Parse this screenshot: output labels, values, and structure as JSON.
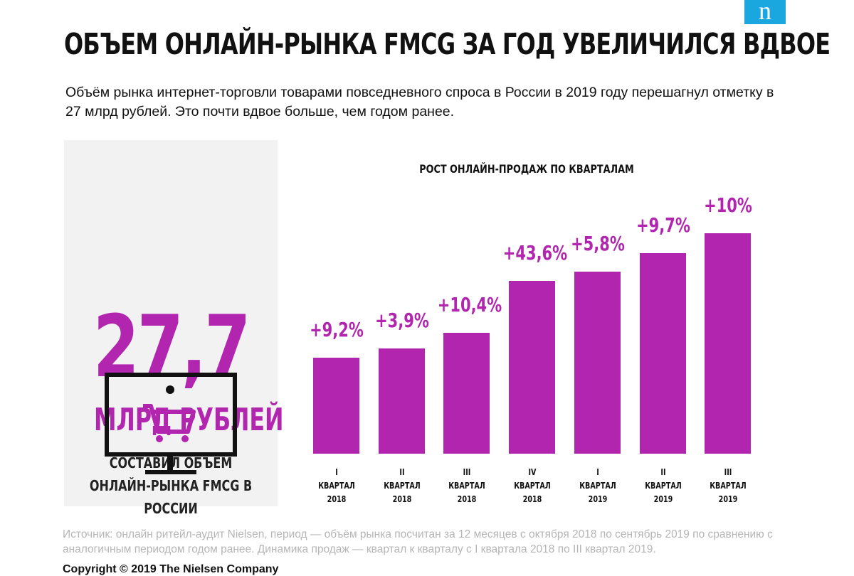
{
  "logo": "n",
  "title": "ОБЪЕМ ОНЛАЙН-РЫНКА FMCG ЗА ГОД УВЕЛИЧИЛСЯ ВДВОЕ",
  "subtitle": "Объём рынка интернет-торговли товарами повседневного спроса в России в 2019 году перешагнул отметку в 27 млрд рублей. Это почти вдвое больше, чем годом ранее.",
  "panel": {
    "value": "27,7",
    "unit": "МЛРД РУБЛЕЙ",
    "description": "СОСТАВИЛ ОБЪЕМ ОНЛАЙН-РЫНКА FMCG В РОССИИ"
  },
  "colors": {
    "accent": "#b125af",
    "panel_bg": "#f3f2f2",
    "logo": "#1aa7e0"
  },
  "chart_data": {
    "type": "bar",
    "title": "РОСТ ОНЛАЙН-ПРОДАЖ ПО КВАРТАЛАМ",
    "categories": [
      [
        "I",
        "КВАРТАЛ",
        "2018"
      ],
      [
        "II",
        "КВАРТАЛ",
        "2018"
      ],
      [
        "III",
        "КВАРТАЛ",
        "2018"
      ],
      [
        "IV",
        "КВАРТАЛ",
        "2018"
      ],
      [
        "I",
        "КВАРТАЛ",
        "2019"
      ],
      [
        "II",
        "КВАРТАЛ",
        "2019"
      ],
      [
        "III",
        "КВАРТАЛ",
        "2019"
      ]
    ],
    "relative_values": [
      1.0,
      1.1,
      1.26,
      1.8,
      1.9,
      2.09,
      2.3
    ],
    "data_labels": [
      "+9,2%",
      "+3,9%",
      "+10,4%",
      "+43,6%",
      "+5,8%",
      "+9,7%",
      "+10%"
    ],
    "xlabel": "",
    "ylabel": "",
    "grid": false
  },
  "source": "Источник: онлайн ритейл-аудит Nielsen, период — объём рынка посчитан за 12 месяцев с октября 2018 по сентябрь 2019 по сравнению с аналогичным периодом годом ранее. Динамика продаж — квартал к кварталу с I квартала 2018 по III квартал 2019.",
  "copyright": "Copyright © 2019 The Nielsen Company"
}
